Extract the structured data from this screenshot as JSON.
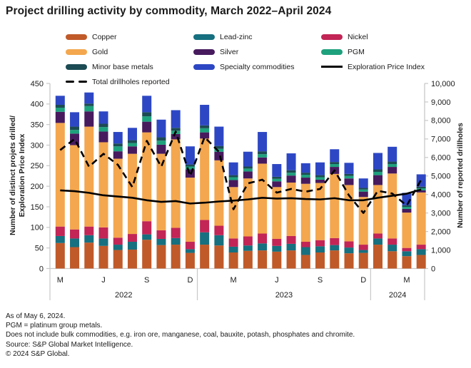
{
  "title": "Project drilling activity by commodity, March 2022–April 2024",
  "legend": {
    "items": [
      {
        "label": "Copper",
        "color": "#c05a29",
        "type": "swatch"
      },
      {
        "label": "Lead-zinc",
        "color": "#16707f",
        "type": "swatch"
      },
      {
        "label": "Nickel",
        "color": "#c22556",
        "type": "swatch"
      },
      {
        "label": "Gold",
        "color": "#f4a74e",
        "type": "swatch"
      },
      {
        "label": "Silver",
        "color": "#471a5e",
        "type": "swatch"
      },
      {
        "label": "PGM",
        "color": "#1ea17d",
        "type": "swatch"
      },
      {
        "label": "Minor base metals",
        "color": "#1c4b53",
        "type": "swatch"
      },
      {
        "label": "Specialty commodities",
        "color": "#2d47c4",
        "type": "swatch"
      },
      {
        "label": "Exploration Price Index",
        "color": "#000000",
        "type": "line"
      },
      {
        "label": "Total drillholes reported",
        "color": "#000000",
        "type": "dashed-line"
      }
    ]
  },
  "chart_data": {
    "type": "bar",
    "subtype": "stacked-bars-with-lines",
    "categories": [
      "Mar 2022",
      "Apr 2022",
      "May 2022",
      "Jun 2022",
      "Jul 2022",
      "Aug 2022",
      "Sep 2022",
      "Oct 2022",
      "Nov 2022",
      "Dec 2022",
      "Jan 2023",
      "Feb 2023",
      "Mar 2023",
      "Apr 2023",
      "May 2023",
      "Jun 2023",
      "Jul 2023",
      "Aug 2023",
      "Sep 2023",
      "Oct 2023",
      "Nov 2023",
      "Dec 2023",
      "Jan 2024",
      "Feb 2024",
      "Mar 2024",
      "Apr 2024"
    ],
    "series": [
      {
        "name": "Copper",
        "color": "#c05a29",
        "values": [
          62,
          52,
          63,
          55,
          45,
          46,
          70,
          57,
          58,
          38,
          58,
          56,
          39,
          43,
          44,
          41,
          44,
          33,
          39,
          44,
          37,
          38,
          58,
          42,
          30,
          33
        ]
      },
      {
        "name": "Lead-zinc",
        "color": "#16707f",
        "values": [
          17,
          21,
          18,
          18,
          13,
          19,
          13,
          15,
          16,
          9,
          30,
          25,
          14,
          13,
          17,
          14,
          16,
          19,
          15,
          13,
          14,
          7,
          15,
          16,
          12,
          14
        ]
      },
      {
        "name": "Nickel",
        "color": "#c22556",
        "values": [
          23,
          22,
          21,
          27,
          17,
          19,
          32,
          21,
          25,
          18,
          30,
          23,
          20,
          22,
          24,
          17,
          19,
          13,
          15,
          17,
          15,
          13,
          12,
          15,
          8,
          11
        ]
      },
      {
        "name": "Gold",
        "color": "#f4a74e",
        "values": [
          252,
          205,
          243,
          207,
          192,
          195,
          216,
          186,
          215,
          156,
          198,
          159,
          125,
          141,
          170,
          126,
          130,
          141,
          139,
          156,
          137,
          116,
          118,
          158,
          86,
          127
        ]
      },
      {
        "name": "Silver",
        "color": "#471a5e",
        "values": [
          27,
          28,
          37,
          26,
          18,
          18,
          26,
          22,
          13,
          20,
          15,
          21,
          17,
          17,
          15,
          14,
          17,
          15,
          8,
          17,
          16,
          13,
          24,
          16,
          9,
          5
        ]
      },
      {
        "name": "PGM",
        "color": "#1ea17d",
        "values": [
          10,
          9,
          13,
          11,
          12,
          8,
          13,
          10,
          8,
          7,
          10,
          7,
          7,
          7,
          8,
          6,
          7,
          7,
          6,
          7,
          6,
          5,
          8,
          7,
          5,
          5
        ]
      },
      {
        "name": "Minor base metals",
        "color": "#1c4b53",
        "values": [
          7,
          8,
          6,
          8,
          7,
          7,
          10,
          8,
          7,
          5,
          7,
          7,
          5,
          5,
          7,
          5,
          6,
          5,
          5,
          5,
          5,
          4,
          6,
          6,
          4,
          4
        ]
      },
      {
        "name": "Specialty commodities",
        "color": "#2d47c4",
        "values": [
          22,
          35,
          27,
          30,
          28,
          30,
          40,
          43,
          43,
          44,
          50,
          47,
          31,
          36,
          47,
          31,
          41,
          23,
          31,
          31,
          27,
          23,
          40,
          36,
          30,
          30
        ]
      }
    ],
    "lines": [
      {
        "name": "Exploration Price Index",
        "axis": "left",
        "style": "solid",
        "color": "#000000",
        "values": [
          190,
          188,
          184,
          178,
          175,
          172,
          166,
          162,
          164,
          158,
          160,
          163,
          165,
          168,
          172,
          170,
          171,
          169,
          168,
          171,
          166,
          166,
          172,
          177,
          182,
          192
        ]
      },
      {
        "name": "Total drillholes reported",
        "axis": "right",
        "style": "dashed",
        "color": "#000000",
        "values": [
          6400,
          7000,
          5500,
          6200,
          5600,
          4400,
          6900,
          5500,
          7400,
          5000,
          7100,
          6300,
          3200,
          4600,
          4800,
          4100,
          4300,
          4150,
          4300,
          5300,
          3950,
          3000,
          4200,
          4050,
          3400,
          4800
        ]
      }
    ],
    "left_axis": {
      "title_line1": "Number of distinct projets drilled/",
      "title_line2": "Exploration Price Index",
      "min": 0,
      "max": 450,
      "step": 50,
      "ticks": [
        "0",
        "50",
        "100",
        "150",
        "200",
        "250",
        "300",
        "350",
        "400",
        "450"
      ]
    },
    "right_axis": {
      "title": "Number of reported drillholes",
      "min": 0,
      "max": 10000,
      "step": 1000,
      "ticks": [
        "0",
        "1,000",
        "2,000",
        "3,000",
        "4,000",
        "5,000",
        "6,000",
        "7,000",
        "8,000",
        "9,000",
        "10,000"
      ]
    },
    "x_axis": {
      "month_ticks": [
        {
          "label": "M",
          "index": 0
        },
        {
          "label": "J",
          "index": 3
        },
        {
          "label": "S",
          "index": 6
        },
        {
          "label": "D",
          "index": 9
        },
        {
          "label": "M",
          "index": 12
        },
        {
          "label": "J",
          "index": 15
        },
        {
          "label": "S",
          "index": 18
        },
        {
          "label": "D",
          "index": 21
        },
        {
          "label": "M",
          "index": 24
        }
      ],
      "year_groups": [
        {
          "label": "2022",
          "start": 0,
          "end": 9
        },
        {
          "label": "2023",
          "start": 10,
          "end": 21
        },
        {
          "label": "2024",
          "start": 22,
          "end": 25
        }
      ]
    },
    "grid": false,
    "legend_position": "top"
  },
  "footer": {
    "lines": [
      "As of May 6, 2024.",
      "PGM = platinum group metals.",
      "Does not include bulk commodities, e.g. iron ore, manganese, coal, bauxite, potash, phosphates and chromite.",
      "Source: S&P Global Market Intelligence.",
      "© 2024 S&P Global."
    ]
  }
}
